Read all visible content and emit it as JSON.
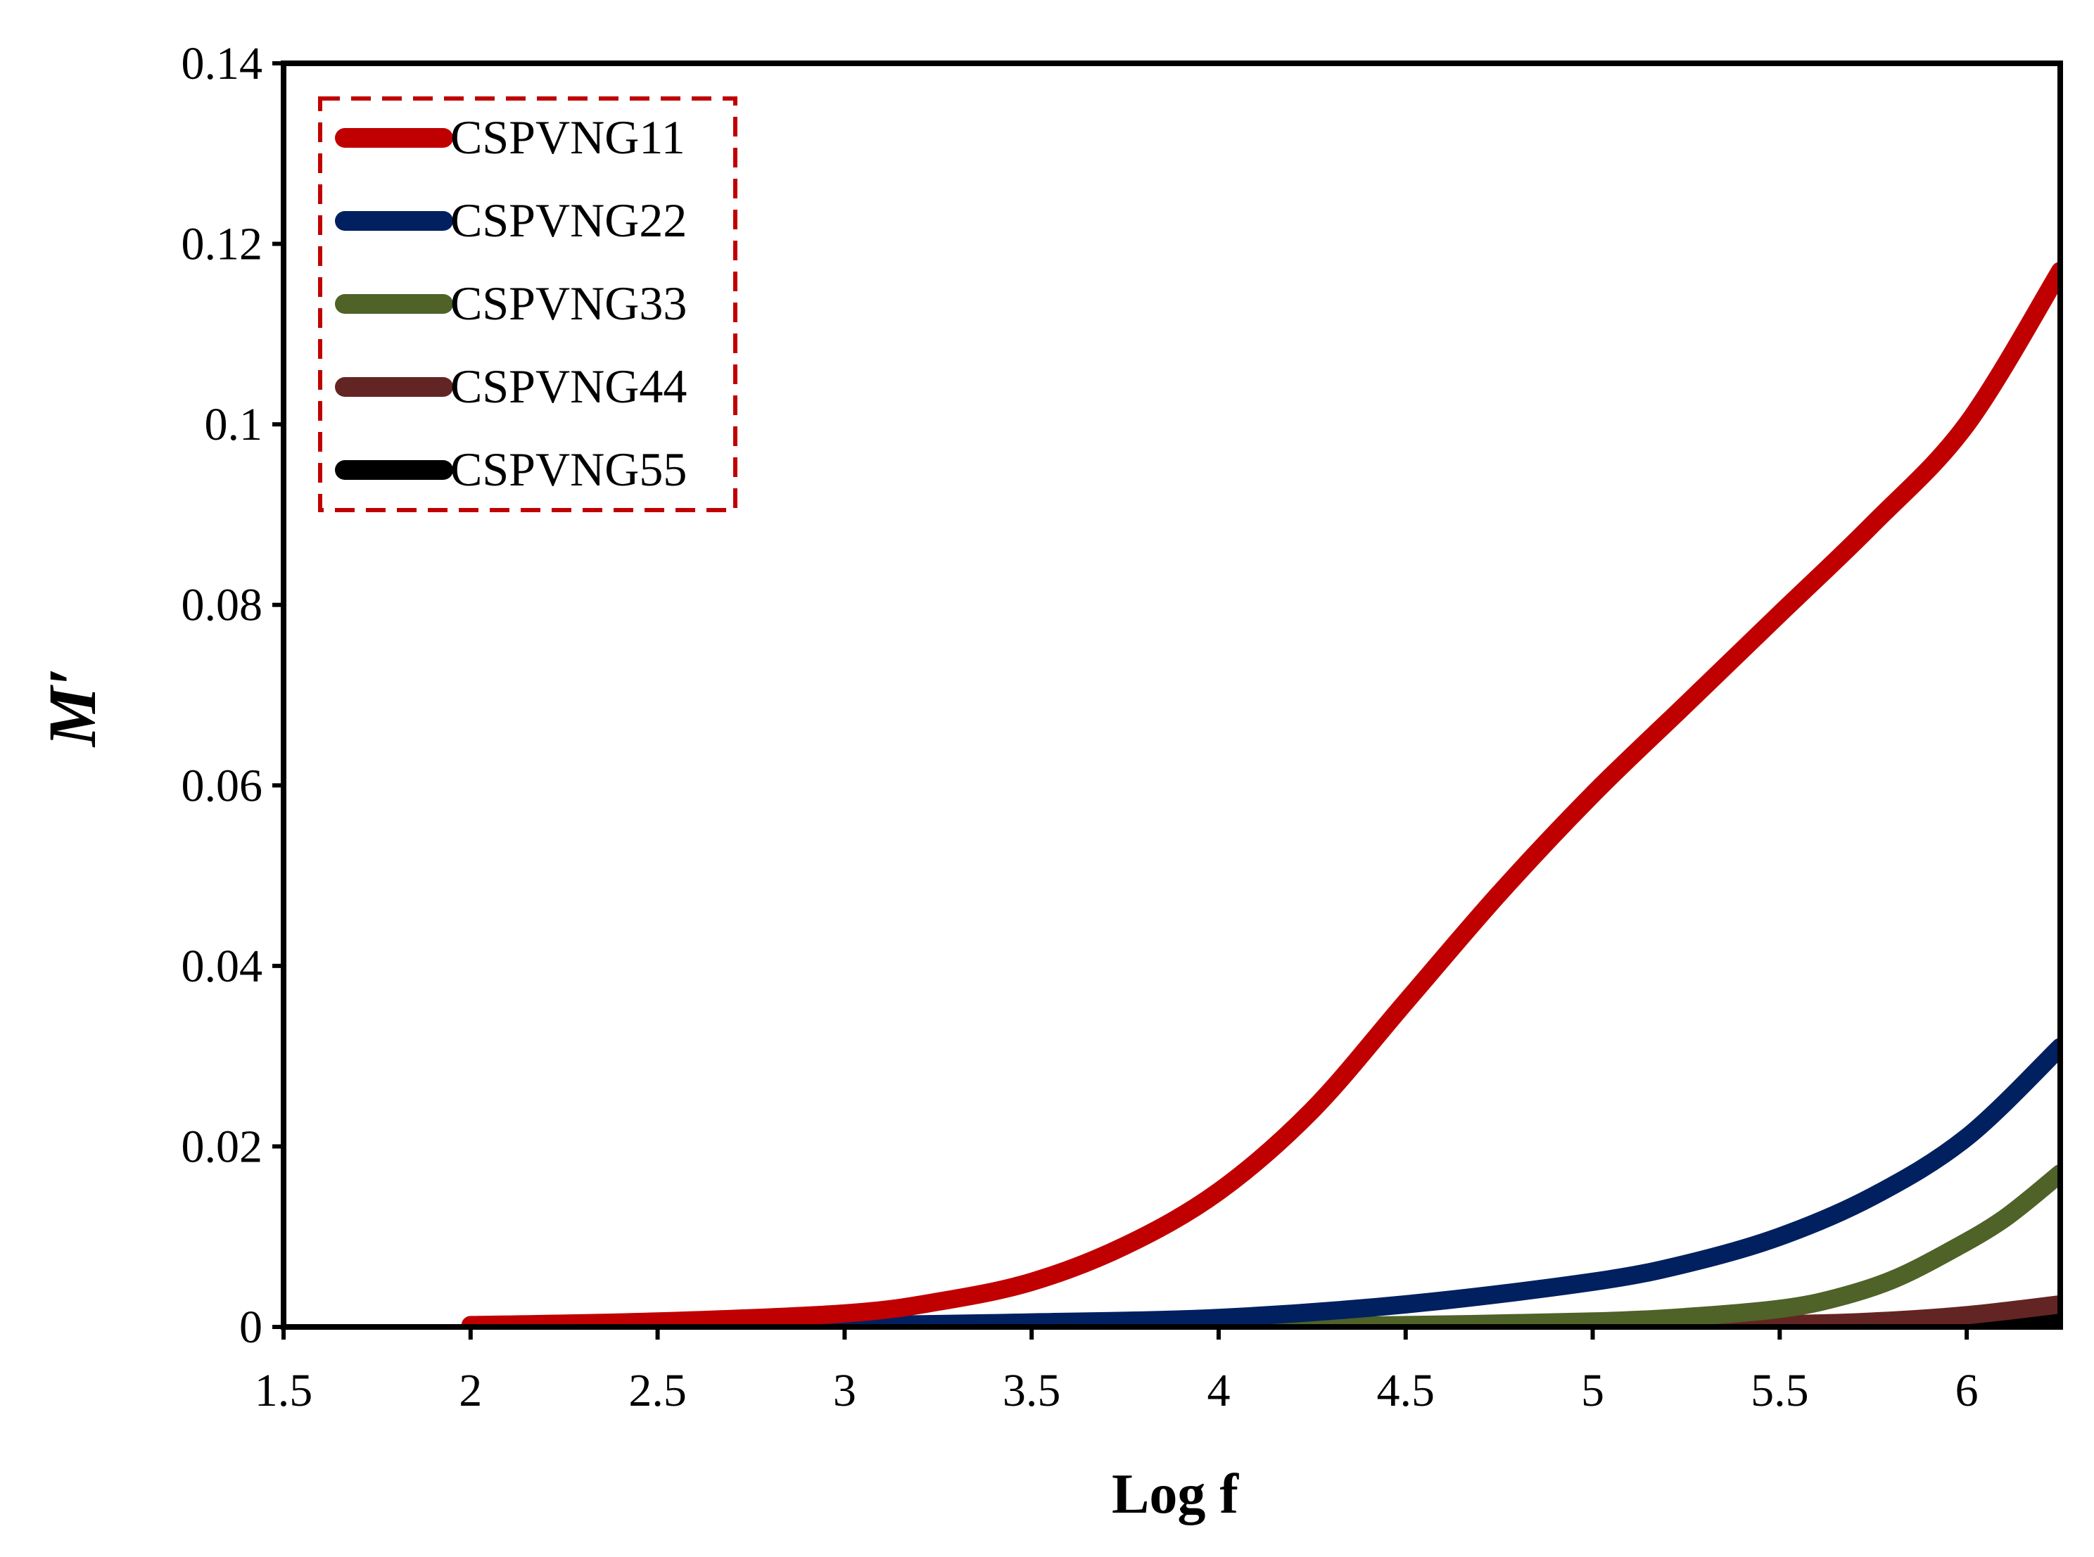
{
  "chart_data": {
    "type": "line",
    "title": "",
    "xlabel": "Log f",
    "ylabel": "M′",
    "xlim": [
      1.5,
      6.25
    ],
    "ylim": [
      0,
      0.14
    ],
    "x_ticks": [
      "1.5",
      "2",
      "2.5",
      "3",
      "3.5",
      "4",
      "4.5",
      "5",
      "5.5",
      "6"
    ],
    "x_tick_values": [
      1.5,
      2,
      2.5,
      3,
      3.5,
      4,
      4.5,
      5,
      5.5,
      6
    ],
    "y_ticks": [
      "0",
      "0.02",
      "0.04",
      "0.06",
      "0.08",
      "0.1",
      "0.12",
      "0.14"
    ],
    "y_tick_values": [
      0,
      0.02,
      0.04,
      0.06,
      0.08,
      0.1,
      0.12,
      0.14
    ],
    "grid": false,
    "legend_position": "top-left",
    "series": [
      {
        "name": "CSPVNG11",
        "color": "#c00000",
        "x": [
          2.0,
          2.5,
          3.0,
          3.25,
          3.5,
          3.75,
          4.0,
          4.25,
          4.5,
          4.75,
          5.0,
          5.25,
          5.5,
          5.75,
          6.0,
          6.25
        ],
        "y": [
          0.0002,
          0.0006,
          0.0015,
          0.0028,
          0.005,
          0.009,
          0.015,
          0.024,
          0.036,
          0.048,
          0.059,
          0.069,
          0.079,
          0.089,
          0.1,
          0.117
        ]
      },
      {
        "name": "CSPVNG22",
        "color": "#002060",
        "x": [
          2.0,
          3.0,
          3.5,
          4.0,
          4.5,
          5.0,
          5.25,
          5.5,
          5.75,
          6.0,
          6.25
        ],
        "y": [
          0.0,
          0.0002,
          0.0005,
          0.001,
          0.0025,
          0.005,
          0.007,
          0.01,
          0.0145,
          0.021,
          0.031
        ]
      },
      {
        "name": "CSPVNG33",
        "color": "#4f6228",
        "x": [
          2.0,
          4.0,
          4.5,
          5.0,
          5.25,
          5.5,
          5.65,
          5.8,
          5.95,
          6.1,
          6.25
        ],
        "y": [
          0.0,
          0.0001,
          0.0002,
          0.0006,
          0.0011,
          0.002,
          0.0032,
          0.0052,
          0.0083,
          0.012,
          0.017
        ]
      },
      {
        "name": "CSPVNG44",
        "color": "#632523",
        "x": [
          2.0,
          5.0,
          5.5,
          5.75,
          6.0,
          6.25
        ],
        "y": [
          0.0,
          0.0001,
          0.0003,
          0.0006,
          0.0013,
          0.0025
        ]
      },
      {
        "name": "CSPVNG55",
        "color": "#000000",
        "x": [
          2.0,
          5.5,
          6.0,
          6.25
        ],
        "y": [
          0.0,
          0.0001,
          0.0003,
          0.0006
        ]
      }
    ]
  }
}
